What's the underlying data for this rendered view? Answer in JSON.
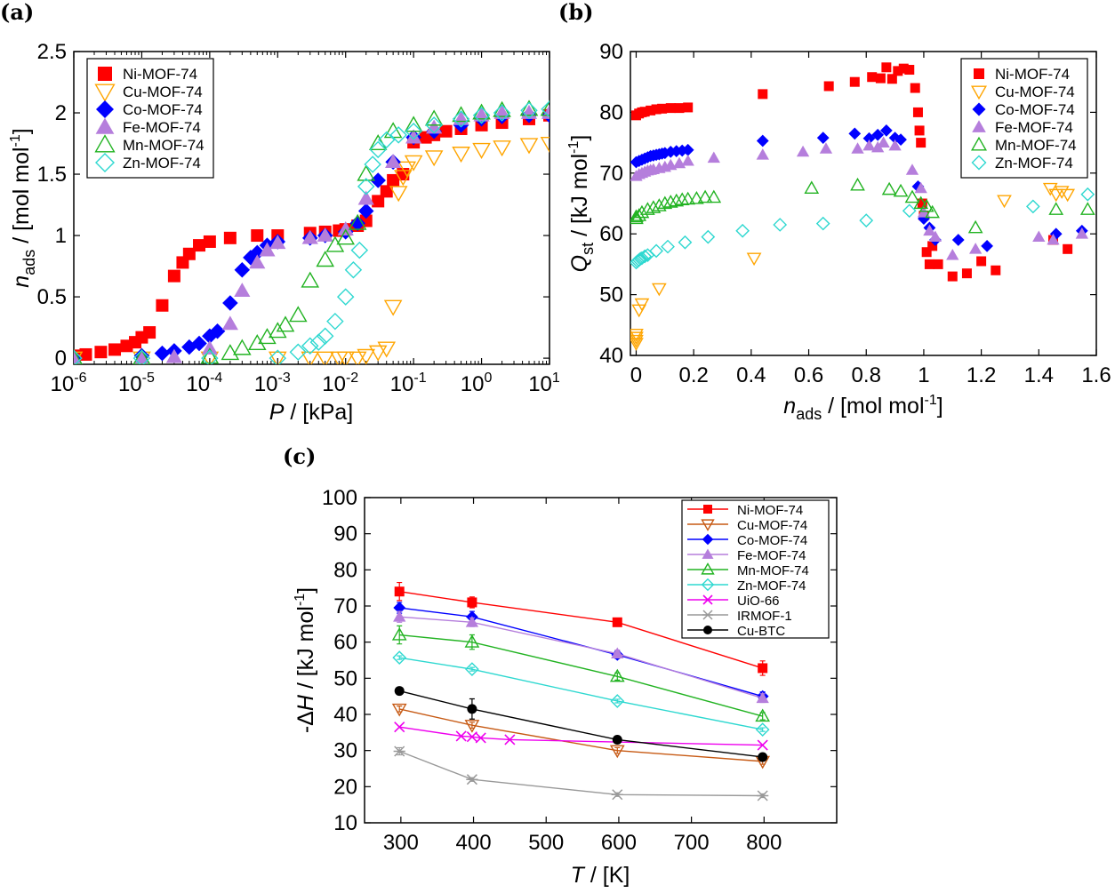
{
  "chart_data": [
    {
      "panel": "(a)",
      "type": "scatter",
      "xlabel": "P / [kPa]",
      "ylabel": "n_ads / [mol mol^-1]",
      "xscale": "log",
      "xlim": [
        1e-06,
        10
      ],
      "ylim": [
        -0.05,
        2.5
      ],
      "xticks": [
        1e-06,
        1e-05,
        0.0001,
        0.001,
        0.01,
        0.1,
        1,
        10
      ],
      "xtick_labels": [
        "-6",
        "-5",
        "-4",
        "-3",
        "-2",
        "-1",
        "0",
        "1"
      ],
      "xtick_base": "10",
      "yticks": [
        0,
        0.5,
        1,
        1.5,
        2,
        2.5
      ],
      "ytick_labels": [
        "0",
        "0.5",
        "1",
        "1.5",
        "2",
        "2.5"
      ],
      "legend_position": "top-left",
      "series": [
        {
          "name": "Ni-MOF-74",
          "color": "#ff0000",
          "marker": "square-filled",
          "x": [
            1e-06,
            1.5e-06,
            2.5e-06,
            4e-06,
            6e-06,
            8e-06,
            1e-05,
            1.3e-05,
            2e-05,
            3e-05,
            4e-05,
            5e-05,
            7e-05,
            0.0001,
            0.0002,
            0.0005,
            0.001,
            0.003,
            0.005,
            0.008,
            0.01,
            0.015,
            0.02,
            0.03,
            0.04,
            0.05,
            0.07,
            0.1,
            0.15,
            0.2,
            0.3,
            0.5,
            1,
            2,
            5,
            10
          ],
          "y": [
            0.02,
            0.03,
            0.05,
            0.07,
            0.1,
            0.13,
            0.17,
            0.21,
            0.43,
            0.67,
            0.78,
            0.85,
            0.92,
            0.95,
            0.98,
            1.0,
            1.0,
            1.02,
            1.03,
            1.04,
            1.05,
            1.08,
            1.12,
            1.28,
            1.36,
            1.45,
            1.5,
            1.76,
            1.8,
            1.82,
            1.85,
            1.87,
            1.9,
            1.92,
            1.95,
            1.98
          ]
        },
        {
          "name": "Cu-MOF-74",
          "color": "#ffa500",
          "marker": "triangle-down-open",
          "x": [
            1e-06,
            1e-05,
            0.0001,
            0.001,
            0.003,
            0.005,
            0.008,
            0.01,
            0.015,
            0.02,
            0.03,
            0.04,
            0.05,
            0.06,
            0.07,
            0.08,
            0.1,
            0.2,
            0.5,
            1,
            2,
            5,
            10
          ],
          "y": [
            0.0,
            0.0,
            0.0,
            0.0,
            0.0,
            0.0,
            0.0,
            0.0,
            0.0,
            0.02,
            0.05,
            0.08,
            0.42,
            1.35,
            1.48,
            1.55,
            1.6,
            1.64,
            1.67,
            1.7,
            1.72,
            1.74,
            1.75
          ]
        },
        {
          "name": "Co-MOF-74",
          "color": "#0000ff",
          "marker": "diamond-filled",
          "x": [
            1e-06,
            1e-05,
            2e-05,
            3e-05,
            5e-05,
            7e-05,
            0.0001,
            0.00013,
            0.0002,
            0.0003,
            0.0004,
            0.0005,
            0.0007,
            0.001,
            0.003,
            0.005,
            0.01,
            0.015,
            0.02,
            0.03,
            0.05,
            0.1,
            0.2,
            0.5,
            1,
            2,
            5,
            10
          ],
          "y": [
            0.0,
            0.02,
            0.04,
            0.06,
            0.09,
            0.12,
            0.18,
            0.22,
            0.45,
            0.72,
            0.82,
            0.86,
            0.92,
            0.95,
            0.98,
            1.0,
            1.03,
            1.1,
            1.2,
            1.45,
            1.6,
            1.8,
            1.85,
            1.9,
            1.95,
            1.97,
            1.98,
            1.98
          ]
        },
        {
          "name": "Fe-MOF-74",
          "color": "#b57edc",
          "marker": "triangle-up-filled",
          "x": [
            1e-06,
            1e-05,
            3e-05,
            0.0001,
            0.0002,
            0.0003,
            0.0005,
            0.0007,
            0.001,
            0.003,
            0.005,
            0.01,
            0.02,
            0.05,
            0.1,
            0.2,
            0.5,
            1,
            2,
            5,
            10
          ],
          "y": [
            0.0,
            0.0,
            0.01,
            0.08,
            0.28,
            0.55,
            0.78,
            0.88,
            0.94,
            0.98,
            1.0,
            1.05,
            1.3,
            1.6,
            1.8,
            1.88,
            1.95,
            1.98,
            2.0,
            2.0,
            2.0
          ]
        },
        {
          "name": "Mn-MOF-74",
          "color": "#22b322",
          "marker": "triangle-up-open",
          "x": [
            1e-06,
            1e-05,
            0.0001,
            0.0002,
            0.0003,
            0.0005,
            0.0007,
            0.001,
            0.0013,
            0.002,
            0.003,
            0.005,
            0.007,
            0.01,
            0.015,
            0.02,
            0.03,
            0.05,
            0.1,
            0.2,
            0.5,
            1,
            2,
            5,
            10
          ],
          "y": [
            0.0,
            0.0,
            0.01,
            0.04,
            0.08,
            0.12,
            0.17,
            0.22,
            0.27,
            0.35,
            0.63,
            0.8,
            0.92,
            0.98,
            1.1,
            1.5,
            1.75,
            1.85,
            1.9,
            1.95,
            1.98,
            2.0,
            2.02,
            2.03,
            2.03
          ]
        },
        {
          "name": "Zn-MOF-74",
          "color": "#2ed8d0",
          "marker": "diamond-open",
          "x": [
            1e-06,
            1e-05,
            0.0001,
            0.001,
            0.002,
            0.003,
            0.004,
            0.005,
            0.007,
            0.01,
            0.013,
            0.016,
            0.02,
            0.025,
            0.03,
            0.04,
            0.06,
            0.1,
            0.2,
            0.5,
            1,
            2,
            5,
            10
          ],
          "y": [
            0.0,
            0.0,
            0.0,
            0.0,
            0.05,
            0.1,
            0.13,
            0.18,
            0.3,
            0.5,
            0.72,
            0.88,
            1.4,
            1.58,
            1.7,
            1.78,
            1.82,
            1.85,
            1.9,
            1.95,
            1.98,
            2.0,
            2.02,
            2.03
          ]
        }
      ]
    },
    {
      "panel": "(b)",
      "type": "scatter",
      "xlabel": "n_ads / [mol mol^-1]",
      "ylabel": "Q_st / [kJ mol^-1]",
      "xlim": [
        -0.02,
        1.6
      ],
      "ylim": [
        40,
        90
      ],
      "xticks": [
        0,
        0.2,
        0.4,
        0.6,
        0.8,
        1,
        1.2,
        1.4,
        1.6
      ],
      "xtick_labels": [
        "0",
        "0.2",
        "0.4",
        "0.6",
        "0.8",
        "1",
        "1.2",
        "1.4",
        "1.6"
      ],
      "yticks": [
        40,
        50,
        60,
        70,
        80,
        90
      ],
      "ytick_labels": [
        "40",
        "50",
        "60",
        "70",
        "80",
        "90"
      ],
      "legend_position": "top-right",
      "series": [
        {
          "name": "Ni-MOF-74",
          "color": "#ff0000",
          "marker": "square-filled",
          "x": [
            0.0,
            0.01,
            0.02,
            0.03,
            0.05,
            0.07,
            0.09,
            0.12,
            0.15,
            0.18,
            0.44,
            0.67,
            0.76,
            0.82,
            0.85,
            0.87,
            0.89,
            0.91,
            0.93,
            0.95,
            0.97,
            0.98,
            0.985,
            0.99,
            0.995,
            1.0,
            1.01,
            1.02,
            1.03,
            1.05,
            1.1,
            1.15,
            1.2,
            1.25,
            1.45,
            1.5
          ],
          "y": [
            79.5,
            79.8,
            80.0,
            80.1,
            80.3,
            80.5,
            80.6,
            80.7,
            80.7,
            80.8,
            83.0,
            84.3,
            85.0,
            85.8,
            85.6,
            87.4,
            85.5,
            86.8,
            87.2,
            87.0,
            84.0,
            80.0,
            77.0,
            75.0,
            65.0,
            63.0,
            57.0,
            55.0,
            58.0,
            55.0,
            53.0,
            53.5,
            55.5,
            54.0,
            59.0,
            57.5
          ]
        },
        {
          "name": "Cu-MOF-74",
          "color": "#ffa500",
          "marker": "triangle-down-open",
          "x": [
            0.0,
            0.0,
            0.0,
            0.0,
            0.01,
            0.02,
            0.08,
            0.41,
            1.28,
            1.44,
            1.46,
            1.48,
            1.5
          ],
          "y": [
            42.0,
            42.5,
            43.0,
            43.5,
            47.5,
            48.5,
            51.0,
            56.0,
            65.5,
            67.5,
            66.5,
            67.0,
            66.5
          ]
        },
        {
          "name": "Co-MOF-74",
          "color": "#0000ff",
          "marker": "diamond-filled",
          "x": [
            0.0,
            0.01,
            0.02,
            0.03,
            0.04,
            0.05,
            0.06,
            0.07,
            0.08,
            0.09,
            0.1,
            0.12,
            0.14,
            0.16,
            0.18,
            0.44,
            0.65,
            0.76,
            0.81,
            0.84,
            0.87,
            0.9,
            0.92,
            0.98,
            1.0,
            1.02,
            1.04,
            1.12,
            1.22,
            1.46,
            1.55
          ],
          "y": [
            71.8,
            72.0,
            72.2,
            72.4,
            72.6,
            72.8,
            72.9,
            73.0,
            73.1,
            73.2,
            73.3,
            73.5,
            73.6,
            73.7,
            73.8,
            75.3,
            75.8,
            76.5,
            75.7,
            76.3,
            77.0,
            75.8,
            75.5,
            67.8,
            62.5,
            61.0,
            59.0,
            59.0,
            58.0,
            60.0,
            60.5
          ]
        },
        {
          "name": "Fe-MOF-74",
          "color": "#b57edc",
          "marker": "triangle-up-filled",
          "x": [
            0.0,
            0.01,
            0.02,
            0.03,
            0.04,
            0.05,
            0.06,
            0.08,
            0.1,
            0.12,
            0.15,
            0.18,
            0.27,
            0.44,
            0.58,
            0.66,
            0.77,
            0.81,
            0.84,
            0.86,
            0.9,
            0.96,
            0.99,
            1.0,
            1.02,
            1.04,
            1.1,
            1.18,
            1.4,
            1.45,
            1.55
          ],
          "y": [
            69.5,
            69.8,
            70.0,
            70.2,
            70.4,
            70.5,
            70.6,
            70.8,
            71.0,
            71.3,
            71.6,
            72.0,
            72.5,
            73.0,
            73.5,
            74.0,
            74.0,
            74.5,
            74.2,
            75.0,
            74.5,
            70.5,
            67.5,
            63.5,
            60.5,
            59.5,
            56.5,
            57.5,
            59.5,
            59.0,
            60.0
          ]
        },
        {
          "name": "Mn-MOF-74",
          "color": "#22b322",
          "marker": "triangle-up-open",
          "x": [
            0.0,
            0.0,
            0.01,
            0.02,
            0.04,
            0.06,
            0.08,
            0.1,
            0.12,
            0.14,
            0.16,
            0.18,
            0.21,
            0.24,
            0.27,
            0.61,
            0.77,
            0.88,
            0.92,
            0.96,
            0.99,
            1.01,
            1.03,
            1.18,
            1.46,
            1.57
          ],
          "y": [
            62.5,
            62.8,
            63.0,
            63.5,
            64.0,
            64.3,
            64.6,
            65.0,
            65.2,
            65.4,
            65.6,
            65.7,
            65.8,
            66.0,
            66.0,
            67.5,
            68.0,
            67.3,
            67.0,
            66.0,
            65.0,
            64.5,
            63.5,
            61.0,
            64.0,
            64.0
          ]
        },
        {
          "name": "Zn-MOF-74",
          "color": "#2ed8d0",
          "marker": "diamond-open",
          "x": [
            0.0,
            0.005,
            0.01,
            0.015,
            0.02,
            0.03,
            0.04,
            0.07,
            0.11,
            0.17,
            0.25,
            0.37,
            0.5,
            0.65,
            0.8,
            0.95,
            1.38,
            1.57
          ],
          "y": [
            55.3,
            55.5,
            55.7,
            55.9,
            56.0,
            56.3,
            56.5,
            57.2,
            57.9,
            58.6,
            59.5,
            60.5,
            61.5,
            61.7,
            62.2,
            63.8,
            64.5,
            66.5
          ]
        }
      ]
    },
    {
      "panel": "(c)",
      "type": "line",
      "xlabel": "T / [K]",
      "ylabel": "-ΔH / [kJ mol^-1]",
      "xlim": [
        250,
        900
      ],
      "ylim": [
        10,
        100
      ],
      "xticks": [
        300,
        400,
        500,
        600,
        700,
        800
      ],
      "xtick_labels": [
        "300",
        "400",
        "500",
        "600",
        "700",
        "800"
      ],
      "yticks": [
        10,
        20,
        30,
        40,
        50,
        60,
        70,
        80,
        90,
        100
      ],
      "ytick_labels": [
        "10",
        "20",
        "30",
        "40",
        "50",
        "60",
        "70",
        "80",
        "90",
        "100"
      ],
      "legend_position": "top-right",
      "series": [
        {
          "name": "Ni-MOF-74",
          "color": "#ff0000",
          "marker": "square-filled",
          "x": [
            298,
            398,
            598,
            798
          ],
          "y": [
            74.0,
            71.0,
            65.5,
            52.8
          ],
          "err": [
            2.5,
            1.5,
            0.8,
            2.0
          ]
        },
        {
          "name": "Cu-MOF-74",
          "color": "#c75a14",
          "marker": "triangle-down-open",
          "x": [
            298,
            398,
            598,
            798
          ],
          "y": [
            41.5,
            37.0,
            30.0,
            27.0
          ],
          "err": [
            0.8,
            0.8,
            0.8,
            0.8
          ]
        },
        {
          "name": "Co-MOF-74",
          "color": "#0000ff",
          "marker": "diamond-filled",
          "x": [
            298,
            398,
            598,
            798
          ],
          "y": [
            69.5,
            67.0,
            56.5,
            45.0
          ],
          "err": [
            1.5,
            1.5,
            1.0,
            1.2
          ]
        },
        {
          "name": "Fe-MOF-74",
          "color": "#b57edc",
          "marker": "triangle-up-filled",
          "x": [
            298,
            398,
            598,
            798
          ],
          "y": [
            67.0,
            65.5,
            56.8,
            44.5
          ],
          "err": [
            1.5,
            1.2,
            1.0,
            1.2
          ]
        },
        {
          "name": "Mn-MOF-74",
          "color": "#22b322",
          "marker": "triangle-up-open",
          "x": [
            298,
            398,
            598,
            798
          ],
          "y": [
            62.0,
            60.0,
            50.5,
            39.5
          ],
          "err": [
            2.5,
            2.0,
            1.0,
            1.0
          ]
        },
        {
          "name": "Zn-MOF-74",
          "color": "#2ed8d0",
          "marker": "diamond-open",
          "x": [
            298,
            398,
            598,
            798
          ],
          "y": [
            55.7,
            52.5,
            43.7,
            35.8
          ],
          "err": [
            0.5,
            0.5,
            0.5,
            0.5
          ]
        },
        {
          "name": "UiO-66",
          "color": "#ee00ee",
          "marker": "x",
          "x": [
            298,
            383,
            398,
            410,
            450,
            798
          ],
          "y": [
            36.5,
            34.0,
            33.8,
            33.5,
            33.0,
            31.5
          ],
          "err": [
            0,
            0,
            0,
            0,
            0,
            0
          ]
        },
        {
          "name": "IRMOF-1",
          "color": "#999999",
          "marker": "asterisk",
          "x": [
            298,
            398,
            598,
            798
          ],
          "y": [
            29.8,
            22.0,
            17.8,
            17.5
          ],
          "err": [
            1.0,
            0.5,
            0.5,
            0.5
          ]
        },
        {
          "name": "Cu-BTC",
          "color": "#000000",
          "marker": "circle-filled",
          "x": [
            298,
            398,
            598,
            798
          ],
          "y": [
            46.5,
            41.5,
            33.0,
            28.2
          ],
          "err": [
            0.5,
            2.8,
            0.5,
            0.5
          ]
        }
      ]
    }
  ]
}
